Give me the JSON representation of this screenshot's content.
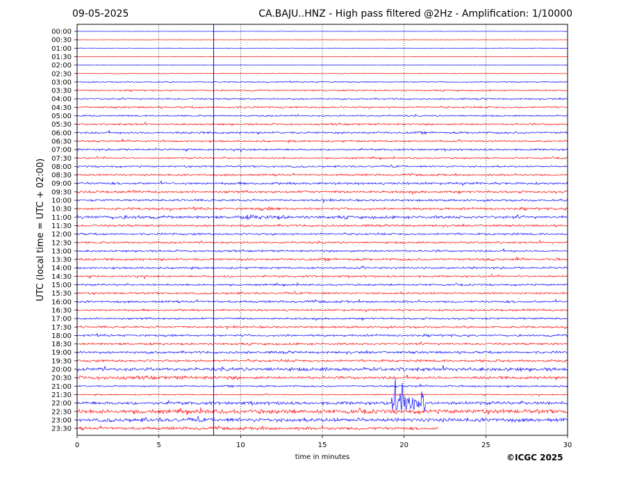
{
  "header": {
    "date": "09-05-2025",
    "title": "CA.BAJU..HNZ - High pass filtered @2Hz - Amplification: 1/10000"
  },
  "footer": {
    "copyright": "©ICGC 2025"
  },
  "colors": {
    "trace_a": "#ff0000",
    "trace_b": "#0000ff",
    "marker": "#0000ff",
    "grid": "#000000"
  },
  "chart_data": {
    "type": "line",
    "title": "CA.BAJU..HNZ - High pass filtered @2Hz - Amplification: 1/10000",
    "xlabel": "time in minutes",
    "ylabel": "UTC (local time = UTC + 02:00)",
    "xlim": [
      0,
      30
    ],
    "x_ticks": [
      0,
      5,
      10,
      15,
      20,
      25,
      30
    ],
    "vertical_gridlines": [
      5,
      10,
      15,
      20,
      25
    ],
    "grid": "dotted-vertical",
    "marker_minute": 8.35,
    "rows": [
      {
        "label": "00:00",
        "color": "blue",
        "noise": 0.3,
        "end": 30
      },
      {
        "label": "00:30",
        "color": "red",
        "noise": 0.3,
        "end": 30
      },
      {
        "label": "01:00",
        "color": "blue",
        "noise": 0.3,
        "end": 30
      },
      {
        "label": "01:30",
        "color": "red",
        "noise": 0.3,
        "end": 30
      },
      {
        "label": "02:00",
        "color": "blue",
        "noise": 0.4,
        "end": 30
      },
      {
        "label": "02:30",
        "color": "red",
        "noise": 0.5,
        "end": 30
      },
      {
        "label": "03:00",
        "color": "blue",
        "noise": 1.0,
        "end": 30
      },
      {
        "label": "03:30",
        "color": "red",
        "noise": 1.2,
        "end": 30
      },
      {
        "label": "04:00",
        "color": "blue",
        "noise": 1.3,
        "end": 30
      },
      {
        "label": "04:30",
        "color": "red",
        "noise": 1.5,
        "end": 30
      },
      {
        "label": "05:00",
        "color": "blue",
        "noise": 1.3,
        "end": 30
      },
      {
        "label": "05:30",
        "color": "red",
        "noise": 1.6,
        "end": 30
      },
      {
        "label": "06:00",
        "color": "blue",
        "noise": 1.8,
        "end": 30
      },
      {
        "label": "06:30",
        "color": "red",
        "noise": 1.5,
        "end": 30
      },
      {
        "label": "07:00",
        "color": "blue",
        "noise": 1.6,
        "end": 30
      },
      {
        "label": "07:30",
        "color": "red",
        "noise": 1.4,
        "end": 30
      },
      {
        "label": "08:00",
        "color": "blue",
        "noise": 1.5,
        "end": 30
      },
      {
        "label": "08:30",
        "color": "red",
        "noise": 1.6,
        "end": 30
      },
      {
        "label": "09:00",
        "color": "blue",
        "noise": 2.0,
        "end": 30
      },
      {
        "label": "09:30",
        "color": "red",
        "noise": 2.0,
        "end": 30
      },
      {
        "label": "10:00",
        "color": "blue",
        "noise": 1.7,
        "end": 30
      },
      {
        "label": "10:30",
        "color": "red",
        "noise": 2.0,
        "end": 30
      },
      {
        "label": "11:00",
        "color": "blue",
        "noise": 2.4,
        "end": 30
      },
      {
        "label": "11:30",
        "color": "red",
        "noise": 1.8,
        "end": 30
      },
      {
        "label": "12:00",
        "color": "blue",
        "noise": 1.7,
        "end": 30
      },
      {
        "label": "12:30",
        "color": "red",
        "noise": 1.6,
        "end": 30
      },
      {
        "label": "13:00",
        "color": "blue",
        "noise": 1.7,
        "end": 30
      },
      {
        "label": "13:30",
        "color": "red",
        "noise": 2.0,
        "end": 30
      },
      {
        "label": "14:00",
        "color": "blue",
        "noise": 1.6,
        "end": 30
      },
      {
        "label": "14:30",
        "color": "red",
        "noise": 1.6,
        "end": 30
      },
      {
        "label": "15:00",
        "color": "blue",
        "noise": 1.6,
        "end": 30
      },
      {
        "label": "15:30",
        "color": "red",
        "noise": 1.7,
        "end": 30
      },
      {
        "label": "16:00",
        "color": "blue",
        "noise": 1.8,
        "end": 30
      },
      {
        "label": "16:30",
        "color": "red",
        "noise": 1.7,
        "end": 30
      },
      {
        "label": "17:00",
        "color": "blue",
        "noise": 1.6,
        "end": 30
      },
      {
        "label": "17:30",
        "color": "red",
        "noise": 1.7,
        "end": 30
      },
      {
        "label": "18:00",
        "color": "blue",
        "noise": 1.8,
        "end": 30
      },
      {
        "label": "18:30",
        "color": "red",
        "noise": 1.8,
        "end": 30
      },
      {
        "label": "19:00",
        "color": "blue",
        "noise": 2.0,
        "end": 30
      },
      {
        "label": "19:30",
        "color": "red",
        "noise": 2.0,
        "end": 30
      },
      {
        "label": "20:00",
        "color": "blue",
        "noise": 2.6,
        "end": 30
      },
      {
        "label": "20:30",
        "color": "red",
        "noise": 2.4,
        "end": 30
      },
      {
        "label": "21:00",
        "color": "blue",
        "noise": 1.5,
        "end": 30
      },
      {
        "label": "21:30",
        "color": "red",
        "noise": 1.0,
        "end": 30
      },
      {
        "label": "22:00",
        "color": "blue",
        "noise": 2.6,
        "end": 30
      },
      {
        "label": "22:30",
        "color": "red",
        "noise": 2.2,
        "end": 30
      },
      {
        "label": "23:00",
        "color": "blue",
        "noise": 2.6,
        "end": 30
      },
      {
        "label": "23:30",
        "color": "red",
        "noise": 2.4,
        "end": 22.1
      }
    ],
    "events": [
      {
        "row": 21,
        "start": 11.0,
        "end": 12.5,
        "amp": 3.0
      },
      {
        "row": 22,
        "start": 0.0,
        "end": 4.5,
        "amp": 3.0
      },
      {
        "row": 22,
        "start": 9.8,
        "end": 12.8,
        "amp": 3.5
      },
      {
        "row": 40,
        "start": 11.5,
        "end": 30,
        "amp": 3.0
      },
      {
        "row": 41,
        "start": 0.0,
        "end": 10.0,
        "amp": 3.0
      },
      {
        "row": 44,
        "start": 19.2,
        "end": 21.3,
        "amp": 20.0
      },
      {
        "row": 45,
        "start": 0.0,
        "end": 30,
        "amp": 3.5
      },
      {
        "row": 46,
        "start": 1.5,
        "end": 30,
        "amp": 3.2
      },
      {
        "row": 47,
        "start": 11.8,
        "end": 19.5,
        "amp": 2.6
      }
    ]
  }
}
